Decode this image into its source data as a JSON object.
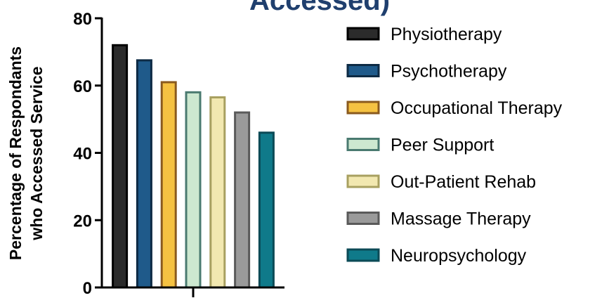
{
  "chart_data": {
    "type": "bar",
    "title": "Accessed)",
    "ylabel": [
      "Percentage of Respondants",
      "who Accessed Service"
    ],
    "categories": [
      null
    ],
    "ylim": [
      0,
      80
    ],
    "yticks": [
      0,
      20,
      40,
      60,
      80
    ],
    "legend": "right",
    "series": [
      {
        "name": "Physiotherapy",
        "color": "#2b2b2b",
        "edgecolor": "#000000",
        "values": [
          72
        ]
      },
      {
        "name": "Psychotherapy",
        "color": "#1f5a8a",
        "edgecolor": "#0d2a44",
        "values": [
          67.5
        ]
      },
      {
        "name": "Occupational Therapy",
        "color": "#f5c242",
        "edgecolor": "#8a5a1e",
        "values": [
          61
        ]
      },
      {
        "name": "Peer Support",
        "color": "#cde8d0",
        "edgecolor": "#4a7a70",
        "values": [
          58
        ]
      },
      {
        "name": "Out-Patient Rehab",
        "color": "#f2e8b0",
        "edgecolor": "#a8a060",
        "values": [
          56.5
        ]
      },
      {
        "name": "Massage Therapy",
        "color": "#9a9a9a",
        "edgecolor": "#5a5a5a",
        "values": [
          52
        ]
      },
      {
        "name": "Neuropsychology",
        "color": "#0f7a8a",
        "edgecolor": "#0b4a56",
        "values": [
          46
        ]
      }
    ]
  }
}
